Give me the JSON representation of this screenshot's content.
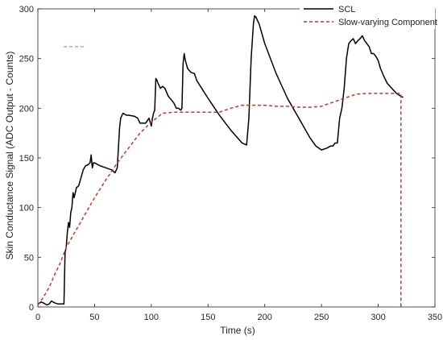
{
  "chart_data": {
    "type": "line",
    "title": "",
    "xlabel": "Time (s)",
    "ylabel": "Skin Conductance Signal (ADC Output - Counts)",
    "xlim": [
      0,
      350
    ],
    "ylim": [
      0,
      300
    ],
    "xticks": [
      0,
      50,
      100,
      150,
      200,
      250,
      300,
      350
    ],
    "yticks": [
      0,
      50,
      100,
      150,
      200,
      250,
      300
    ],
    "grid": false,
    "legend_position": "top-right",
    "series": [
      {
        "name": "SCL",
        "style": "solid",
        "color": "#000000",
        "x": [
          0,
          3,
          5,
          8,
          10,
          12,
          15,
          18,
          20,
          22,
          23,
          23.5,
          24,
          25,
          26,
          27,
          28,
          29,
          30,
          31,
          32,
          34,
          36,
          38,
          40,
          42,
          44,
          46,
          47,
          48,
          49,
          50,
          55,
          60,
          65,
          68,
          70,
          71,
          72,
          73,
          75,
          78,
          80,
          85,
          88,
          90,
          95,
          98,
          100,
          101,
          102,
          103,
          104,
          105,
          106,
          108,
          110,
          112,
          115,
          118,
          120,
          122,
          124,
          126,
          127,
          128,
          129,
          130,
          132,
          135,
          138,
          140,
          150,
          160,
          170,
          180,
          184,
          186,
          188,
          190,
          191,
          192,
          195,
          200,
          210,
          220,
          230,
          240,
          245,
          250,
          255,
          258,
          260,
          262,
          264,
          266,
          268,
          270,
          272,
          274,
          276,
          278,
          280,
          282,
          284,
          286,
          288,
          290,
          292,
          294,
          296,
          298,
          300,
          302,
          305,
          308,
          312,
          316,
          320,
          322
        ],
        "y": [
          3,
          5,
          4,
          2,
          3,
          6,
          4,
          3,
          3,
          3,
          3,
          30,
          55,
          60,
          75,
          85,
          80,
          95,
          100,
          115,
          110,
          120,
          122,
          130,
          138,
          142,
          143,
          145,
          153,
          140,
          145,
          145,
          142,
          140,
          138,
          135,
          140,
          160,
          180,
          190,
          195,
          193,
          193,
          192,
          190,
          185,
          185,
          190,
          182,
          190,
          195,
          198,
          230,
          228,
          225,
          220,
          222,
          220,
          212,
          208,
          205,
          200,
          200,
          198,
          200,
          245,
          255,
          248,
          240,
          236,
          235,
          228,
          210,
          193,
          178,
          165,
          163,
          190,
          250,
          285,
          293,
          292,
          285,
          265,
          235,
          210,
          190,
          170,
          162,
          158,
          160,
          162,
          162,
          165,
          165,
          190,
          200,
          220,
          250,
          265,
          268,
          270,
          265,
          268,
          270,
          273,
          268,
          265,
          262,
          255,
          255,
          252,
          248,
          240,
          232,
          225,
          220,
          215,
          212,
          211
        ]
      },
      {
        "name": "Slow-varying Component",
        "style": "dashed",
        "color": "#c0392b",
        "x": [
          0,
          5,
          10,
          15,
          20,
          25,
          30,
          40,
          50,
          60,
          70,
          80,
          90,
          100,
          110,
          120,
          130,
          140,
          150,
          160,
          170,
          180,
          190,
          200,
          210,
          220,
          230,
          240,
          250,
          260,
          270,
          280,
          290,
          300,
          310,
          315,
          319,
          320,
          320
        ],
        "y": [
          2,
          10,
          20,
          33,
          45,
          60,
          70,
          90,
          110,
          128,
          145,
          160,
          175,
          186,
          195,
          196,
          196,
          196,
          196,
          196,
          200,
          203,
          203,
          203,
          202,
          202,
          201,
          201,
          202,
          206,
          210,
          214,
          215,
          215,
          215,
          215,
          215,
          215,
          0
        ]
      }
    ],
    "annotations": [
      {
        "type": "legend-artifact",
        "x": 32,
        "y": 262,
        "color": "#5fa8ff"
      }
    ]
  }
}
